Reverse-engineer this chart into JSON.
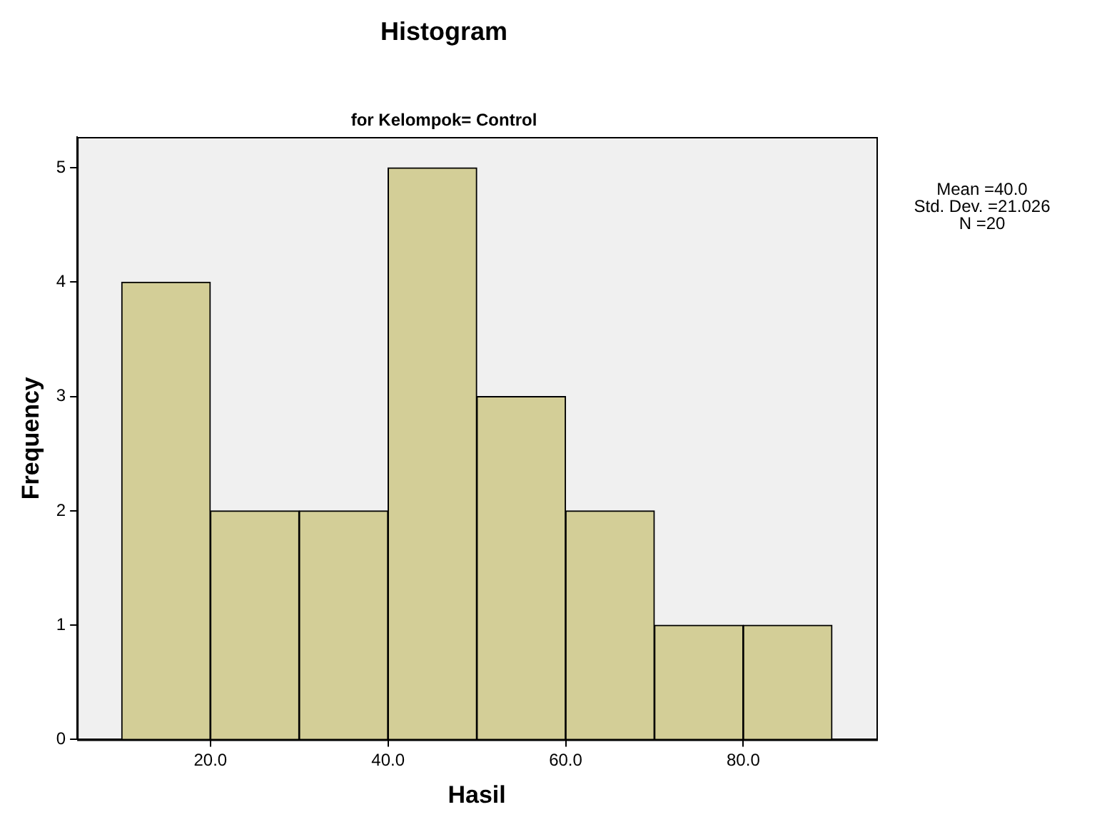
{
  "chart_data": {
    "type": "histogram",
    "title": "Histogram",
    "subtitle": "for Kelompok= Control",
    "xlabel": "Hasil",
    "ylabel": "Frequency",
    "bins": [
      10,
      20,
      30,
      40,
      50,
      60,
      70,
      80,
      90
    ],
    "values": [
      4,
      2,
      2,
      5,
      3,
      2,
      1,
      1
    ],
    "color": "#d3ce97",
    "xlim": [
      5,
      95
    ],
    "xticks": [
      {
        "value": 20,
        "label": "20.0"
      },
      {
        "value": 40,
        "label": "40.0"
      },
      {
        "value": 60,
        "label": "60.0"
      },
      {
        "value": 80,
        "label": "80.0"
      }
    ],
    "ylim": [
      0,
      5.27
    ],
    "yticks": [
      0,
      1,
      2,
      3,
      4,
      5
    ],
    "grid": false,
    "legend": false,
    "annotations": [
      "Mean =40.0",
      "Std. Dev. =21.026",
      "N =20"
    ]
  }
}
